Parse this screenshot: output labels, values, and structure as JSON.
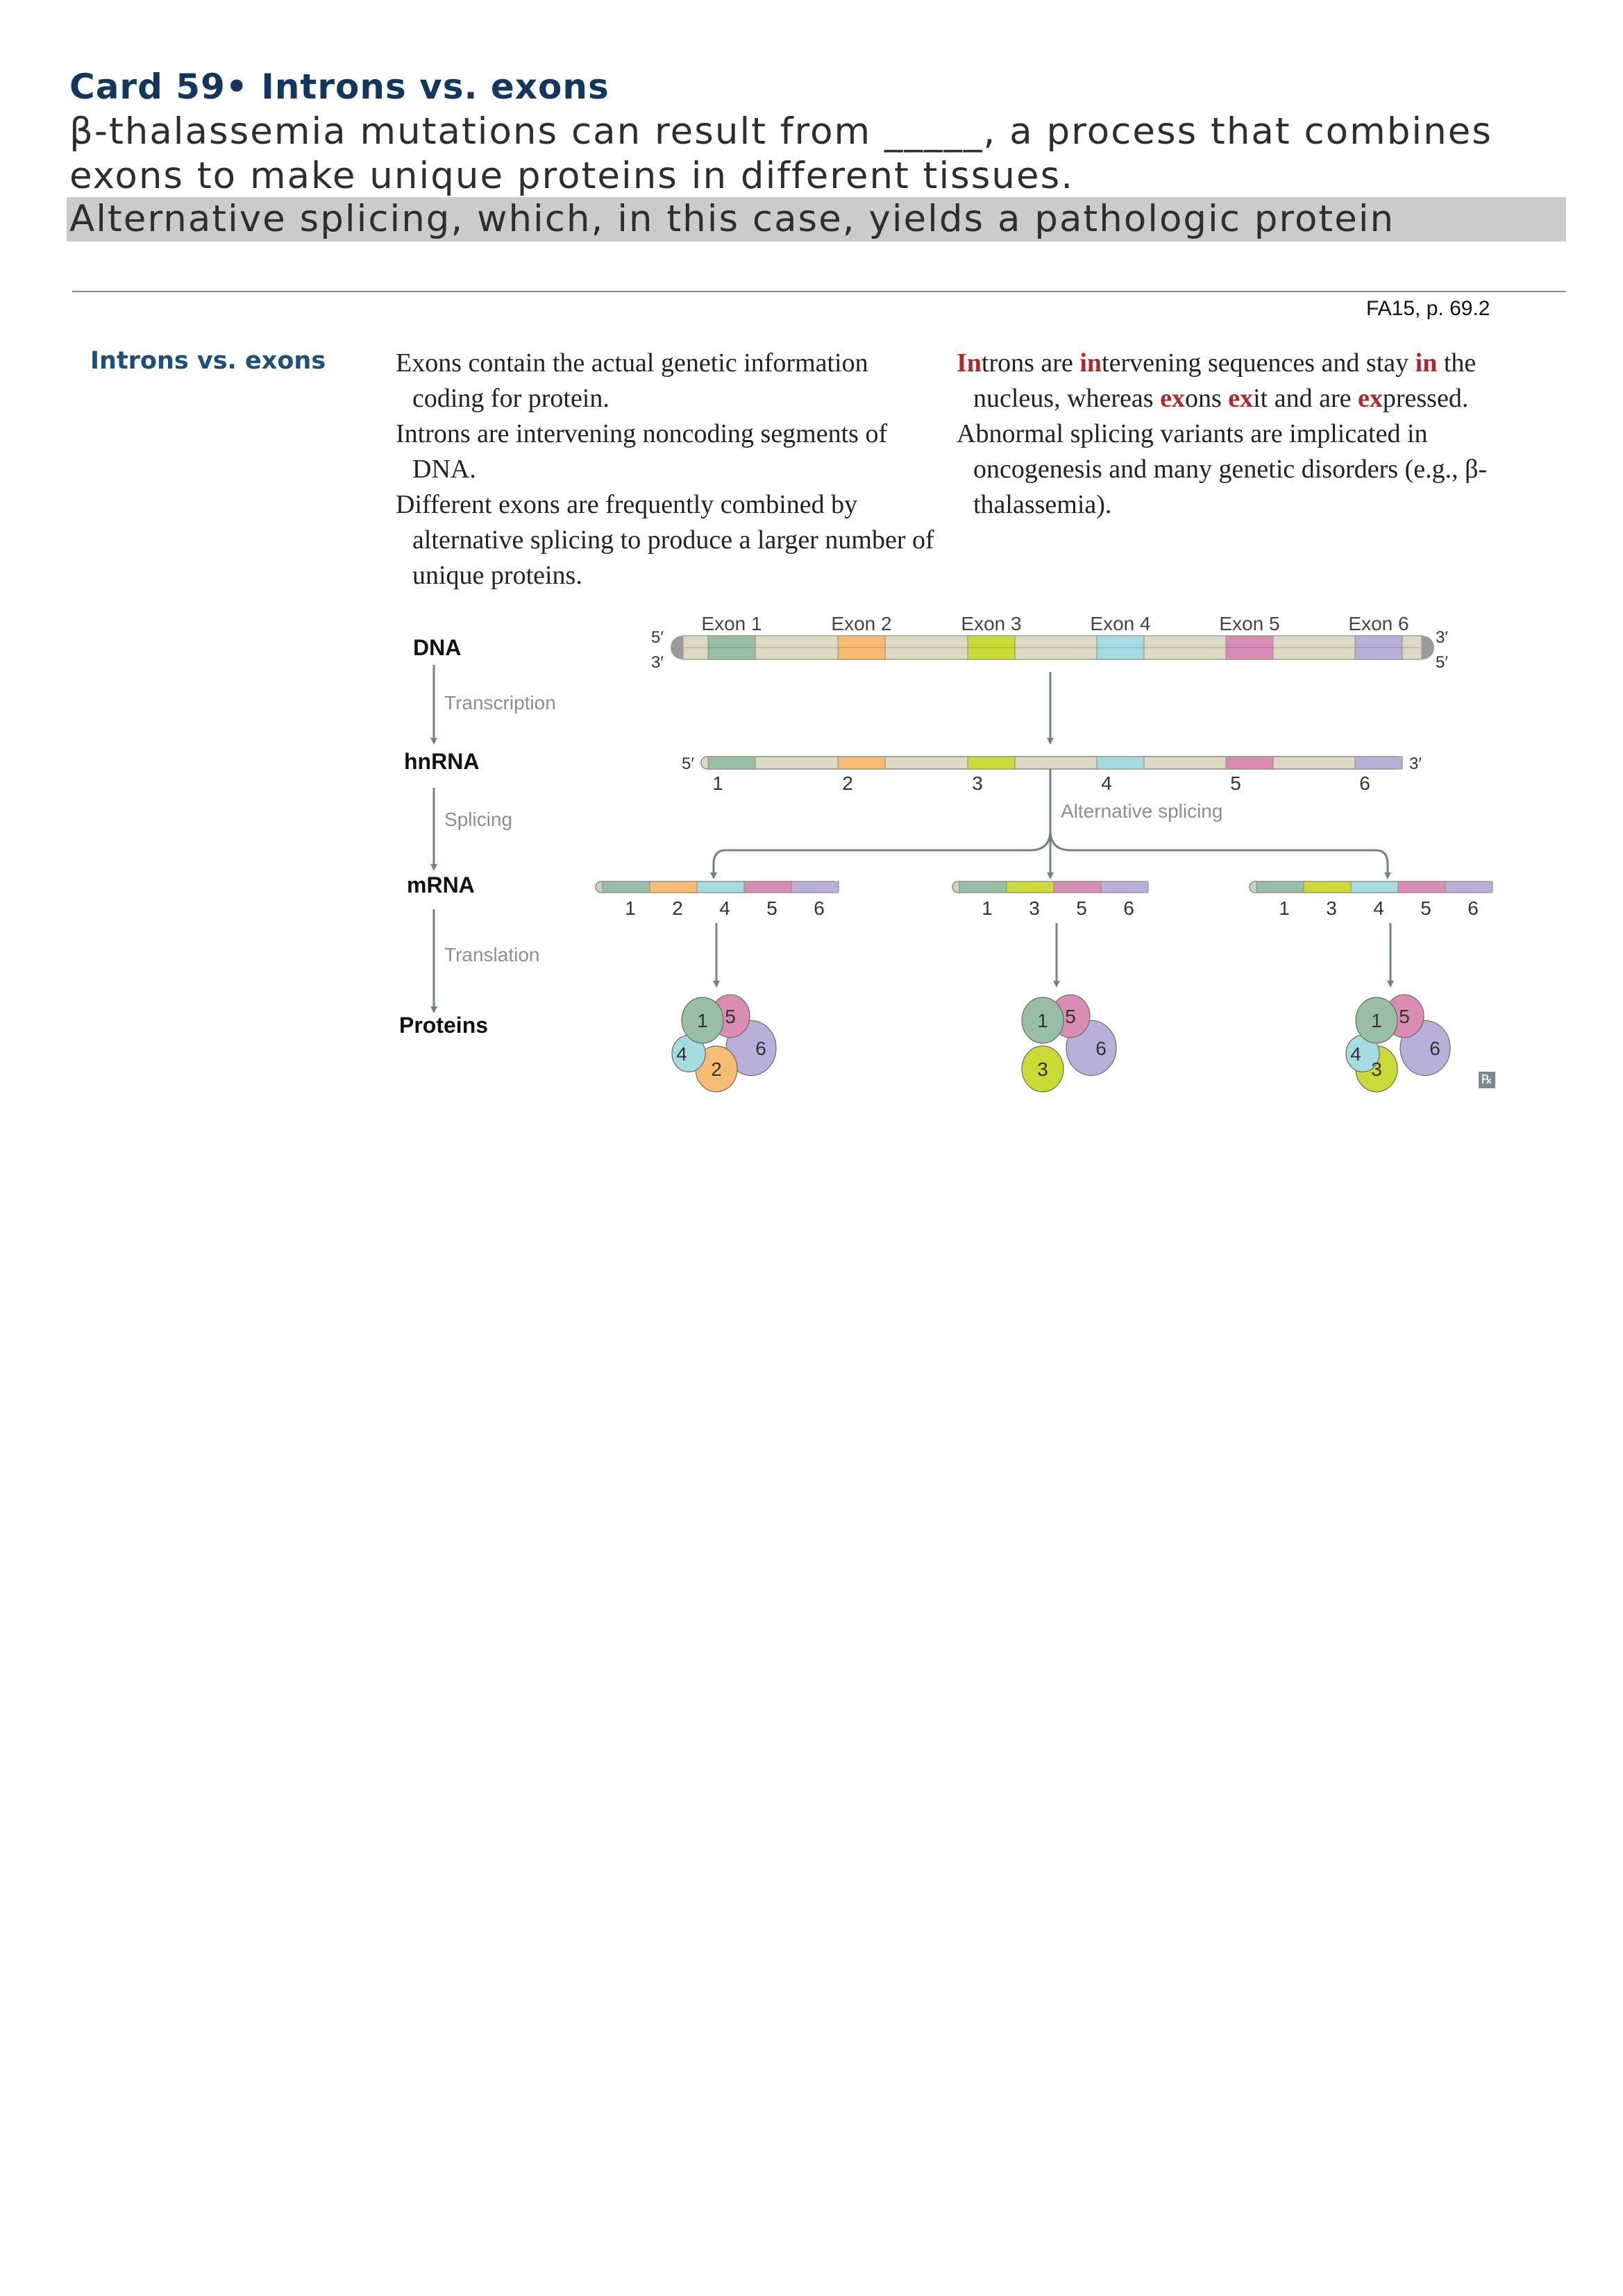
{
  "card": {
    "title": "Card 59• Introns vs. exons",
    "question": "β-thalassemia mutations can result from _____, a process that combines exons to make unique proteins in different tissues.",
    "answer": "Alternative splicing, which, in this case, yields a pathologic protein",
    "source": "FA15, p. 69.2"
  },
  "section": {
    "heading": "Introns vs. exons",
    "left_column": [
      "Exons contain the actual genetic information coding for protein.",
      "Introns are intervening noncoding segments of DNA.",
      " Different exons are frequently combined by alternative splicing to produce a larger number of unique proteins."
    ],
    "right_column": {
      "p1": [
        {
          "t": "In",
          "red": true
        },
        {
          "t": "trons are ",
          "red": false
        },
        {
          "t": "in",
          "red": true
        },
        {
          "t": "tervening sequences and stay ",
          "red": false
        },
        {
          "t": "in",
          "red": true
        },
        {
          "t": " the nucleus, whereas ",
          "red": false
        },
        {
          "t": "ex",
          "red": true
        },
        {
          "t": "ons ",
          "red": false
        },
        {
          "t": "ex",
          "red": true
        },
        {
          "t": "it and are ",
          "red": false
        },
        {
          "t": "ex",
          "red": true
        },
        {
          "t": "pressed.",
          "red": false
        }
      ],
      "p2": "Abnormal splicing variants are implicated in oncogenesis and many genetic disorders (e.g., β-thalassemia)."
    }
  },
  "diagram": {
    "stages": {
      "dna": "DNA",
      "transcription": "Transcription",
      "hnrna": "hnRNA",
      "splicing": "Splicing",
      "mrna": "mRNA",
      "translation": "Translation",
      "proteins": "Proteins"
    },
    "exon_labels": [
      "Exon 1",
      "Exon 2",
      "Exon 3",
      "Exon 4",
      "Exon 5",
      "Exon 6"
    ],
    "exon_colors": [
      "#98bfa5",
      "#f8bb74",
      "#ccda37",
      "#a4dce2",
      "#d98cb4",
      "#b8b0d8"
    ],
    "intron_color": "#dcd9c5",
    "primes": {
      "five": "5′",
      "three": "3′"
    },
    "alternative_splicing": "Alternative splicing",
    "hnrna_numbers": [
      "1",
      "2",
      "3",
      "4",
      "5",
      "6"
    ],
    "mrna_variants": [
      {
        "exons": [
          "1",
          "2",
          "4",
          "5",
          "6"
        ]
      },
      {
        "exons": [
          "1",
          "3",
          "5",
          "6"
        ]
      },
      {
        "exons": [
          "1",
          "3",
          "4",
          "5",
          "6"
        ]
      }
    ],
    "rx_icon": "rx-icon"
  }
}
